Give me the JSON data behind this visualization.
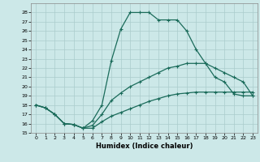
{
  "xlabel": "Humidex (Indice chaleur)",
  "bg_color": "#cce8e8",
  "line_color": "#1a6b5a",
  "grid_color": "#aacccc",
  "xlim": [
    -0.5,
    23.5
  ],
  "ylim": [
    15,
    29
  ],
  "xticks": [
    0,
    1,
    2,
    3,
    4,
    5,
    6,
    7,
    8,
    9,
    10,
    11,
    12,
    13,
    14,
    15,
    16,
    17,
    18,
    19,
    20,
    21,
    22,
    23
  ],
  "yticks": [
    15,
    16,
    17,
    18,
    19,
    20,
    21,
    22,
    23,
    24,
    25,
    26,
    27,
    28
  ],
  "curve1_x": [
    0,
    1,
    2,
    3,
    4,
    5,
    6,
    7,
    8,
    9,
    10,
    11,
    12,
    13,
    14,
    15,
    16,
    17,
    18,
    19,
    20,
    21,
    22,
    23
  ],
  "curve1_y": [
    18,
    17.7,
    17,
    16,
    15.9,
    15.5,
    15.5,
    16.2,
    16.8,
    17.2,
    17.6,
    18.0,
    18.4,
    18.7,
    19.0,
    19.2,
    19.3,
    19.4,
    19.4,
    19.4,
    19.4,
    19.4,
    19.4,
    19.4
  ],
  "curve2_x": [
    0,
    1,
    2,
    3,
    4,
    5,
    6,
    7,
    8,
    9,
    10,
    11,
    12,
    13,
    14,
    15,
    16,
    17,
    18,
    19,
    20,
    21,
    22,
    23
  ],
  "curve2_y": [
    18,
    17.7,
    17,
    16,
    15.9,
    15.5,
    15.8,
    17.0,
    18.5,
    19.3,
    20.0,
    20.5,
    21.0,
    21.5,
    22.0,
    22.2,
    22.5,
    22.5,
    22.5,
    22.0,
    21.5,
    21.0,
    20.5,
    19.0
  ],
  "curve3_x": [
    0,
    1,
    2,
    3,
    4,
    5,
    6,
    7,
    8,
    9,
    10,
    11,
    12,
    13,
    14,
    15,
    16,
    17,
    18,
    19,
    20,
    21,
    22,
    23
  ],
  "curve3_y": [
    18,
    17.7,
    17,
    16,
    15.9,
    15.5,
    16.3,
    18.0,
    22.8,
    26.2,
    28.0,
    28.0,
    28.0,
    27.2,
    27.2,
    27.2,
    26.0,
    24.0,
    22.5,
    21.0,
    20.5,
    19.2,
    19.0,
    19.0
  ]
}
